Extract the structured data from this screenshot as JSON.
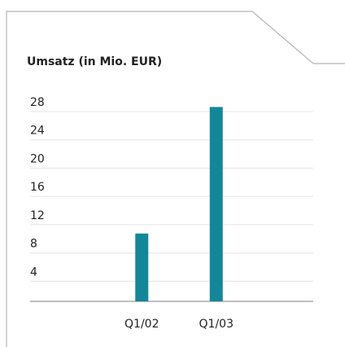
{
  "chart_data": {
    "type": "bar",
    "title": "Umsatz (in Mio. EUR)",
    "categories": [
      "Q1/02",
      "Q1/03"
    ],
    "values": [
      9.6,
      27.5
    ],
    "color": "#13879a",
    "ylim": [
      0,
      28
    ],
    "yticks": [
      4,
      8,
      12,
      16,
      20,
      24,
      28
    ],
    "grid": true
  }
}
